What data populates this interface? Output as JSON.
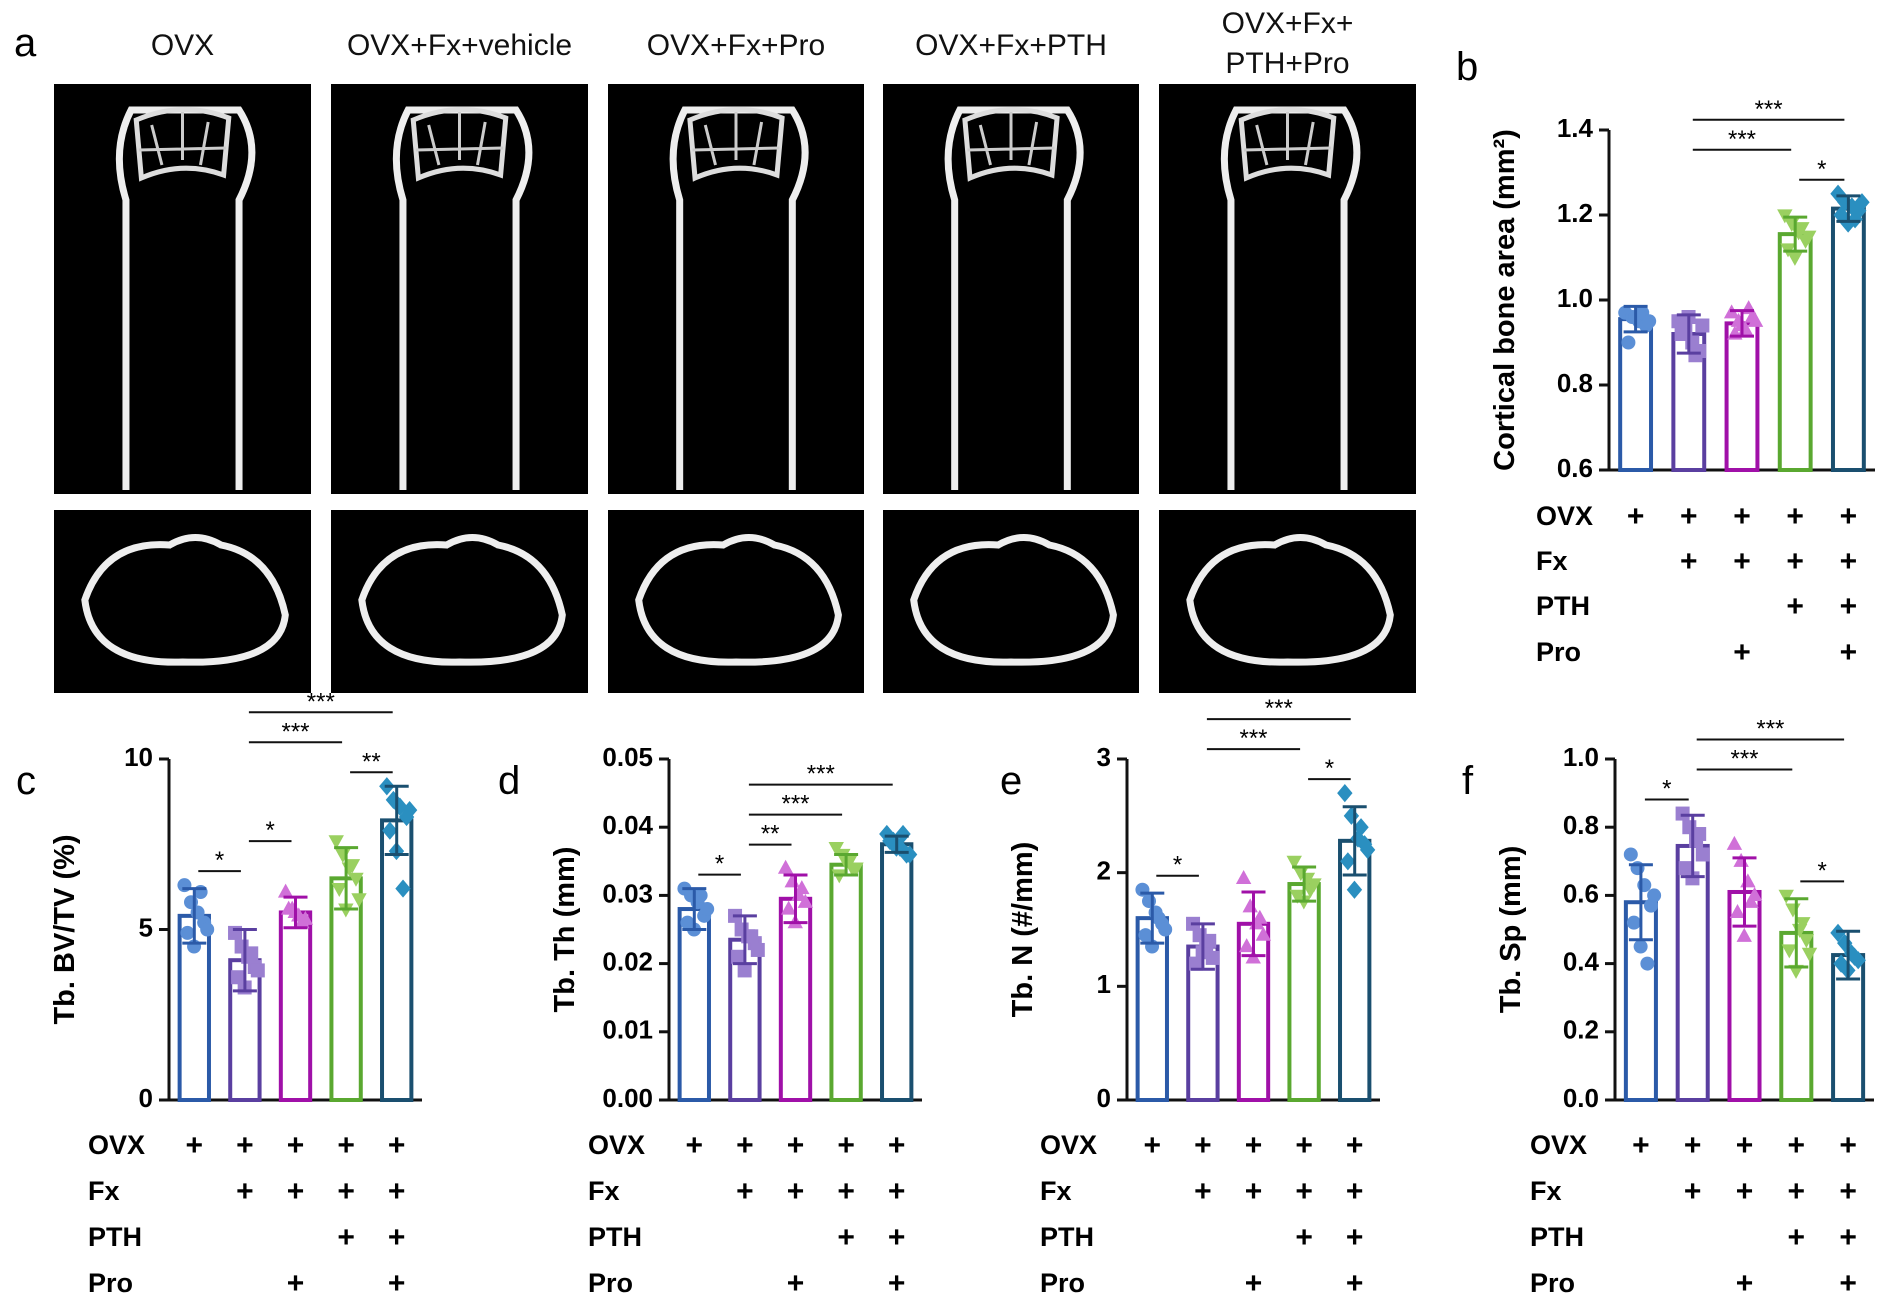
{
  "panel_a": {
    "panel": "a",
    "columns": [
      "OVX",
      "OVX+Fx+vehicle",
      "OVX+Fx+Pro",
      "OVX+Fx+PTH",
      "OVX+Fx+\nPTH+Pro"
    ]
  },
  "groups": {
    "rows": [
      "OVX",
      "Fx",
      "PTH",
      "Pro"
    ],
    "marks": [
      [
        "+",
        "+",
        "+",
        "+",
        "+"
      ],
      [
        null,
        "+",
        "+",
        "+",
        "+"
      ],
      [
        null,
        null,
        null,
        "+",
        "+"
      ],
      [
        null,
        null,
        "+",
        null,
        "+"
      ]
    ],
    "colors": [
      "#2b5aa8",
      "#5a3fa0",
      "#a010a8",
      "#5aa830",
      "#1a4f6f"
    ],
    "point_colors": [
      "#5b8fd6",
      "#9a7fd0",
      "#d070d8",
      "#9ad060",
      "#2a8fc0"
    ]
  },
  "chart_data": [
    {
      "type": "bar",
      "panel": "b",
      "ylabel": "Cortical bone area (mm²)",
      "ylim": [
        0.6,
        1.4
      ],
      "yticks": [
        0.6,
        0.8,
        {
          "value": 1.0,
          "label": "1.0"
        },
        1.2,
        1.4
      ],
      "values": [
        0.955,
        0.92,
        0.945,
        1.155,
        1.215
      ],
      "errors": [
        0.03,
        0.045,
        0.03,
        0.04,
        0.03
      ],
      "points": [
        [
          0.97,
          0.96,
          0.95,
          0.94,
          0.9,
          0.96,
          0.97,
          0.95
        ],
        [
          0.95,
          0.93,
          0.9,
          0.88,
          0.92,
          0.96,
          0.87,
          0.94
        ],
        [
          0.97,
          0.95,
          0.93,
          0.96,
          0.92,
          0.94,
          0.98,
          0.95
        ],
        [
          1.2,
          1.18,
          1.16,
          1.14,
          1.12,
          1.1,
          1.17,
          1.15
        ],
        [
          1.25,
          1.23,
          1.22,
          1.21,
          1.2,
          1.18,
          1.19,
          1.23
        ]
      ],
      "significance": [
        {
          "pair": [
            3,
            4
          ],
          "label": "*"
        },
        {
          "pair": [
            1,
            3
          ],
          "label": "***"
        },
        {
          "pair": [
            1,
            4
          ],
          "label": "***"
        }
      ]
    },
    {
      "type": "bar",
      "panel": "c",
      "ylabel": "Tb. BV/TV (%)",
      "ylim": [
        0,
        10
      ],
      "yticks": [
        0,
        5,
        10
      ],
      "values": [
        5.4,
        4.1,
        5.5,
        6.5,
        8.2
      ],
      "errors": [
        0.8,
        0.9,
        0.45,
        0.9,
        1.0
      ],
      "points": [
        [
          6.3,
          5.8,
          5.5,
          5.2,
          4.9,
          4.5,
          6.1,
          5.0
        ],
        [
          4.9,
          4.5,
          4.2,
          3.9,
          3.6,
          3.3,
          4.3,
          3.8
        ],
        [
          6.1,
          5.6,
          5.4,
          5.3,
          5.6,
          5.5,
          5.2
        ],
        [
          7.6,
          7.2,
          6.8,
          6.5,
          6.2,
          5.6,
          6.9,
          5.9
        ],
        [
          9.2,
          8.8,
          8.6,
          8.3,
          7.9,
          7.3,
          6.2,
          8.5
        ]
      ],
      "significance": [
        {
          "pair": [
            0,
            1
          ],
          "label": "*"
        },
        {
          "pair": [
            1,
            2
          ],
          "label": "*"
        },
        {
          "pair": [
            3,
            4
          ],
          "label": "**"
        },
        {
          "pair": [
            1,
            3
          ],
          "label": "***"
        },
        {
          "pair": [
            1,
            4
          ],
          "label": "***"
        }
      ]
    },
    {
      "type": "bar",
      "panel": "d",
      "ylabel": "Tb. Th (mm)",
      "ylim": [
        0,
        0.05
      ],
      "yticks": [
        {
          "value": 0,
          "label": "0.00"
        },
        0.01,
        0.02,
        0.03,
        0.04,
        0.05
      ],
      "values": [
        0.028,
        0.0235,
        0.0295,
        0.0345,
        0.0375
      ],
      "errors": [
        0.003,
        0.0035,
        0.0035,
        0.0015,
        0.0012
      ],
      "points": [
        [
          0.031,
          0.03,
          0.029,
          0.027,
          0.026,
          0.025,
          0.03,
          0.028
        ],
        [
          0.027,
          0.025,
          0.024,
          0.023,
          0.021,
          0.019,
          0.024,
          0.022
        ],
        [
          0.034,
          0.032,
          0.03,
          0.029,
          0.028,
          0.026,
          0.031
        ],
        [
          0.037,
          0.036,
          0.035,
          0.034,
          0.033,
          0.035,
          0.034
        ],
        [
          0.039,
          0.038,
          0.037,
          0.036,
          0.038,
          0.037,
          0.039,
          0.036
        ]
      ],
      "significance": [
        {
          "pair": [
            0,
            1
          ],
          "label": "*"
        },
        {
          "pair": [
            1,
            2
          ],
          "label": "**"
        },
        {
          "pair": [
            1,
            3
          ],
          "label": "***"
        },
        {
          "pair": [
            1,
            4
          ],
          "label": "***"
        }
      ]
    },
    {
      "type": "bar",
      "panel": "e",
      "ylabel": "Tb. N (#/mm)",
      "ylim": [
        0,
        3
      ],
      "yticks": [
        0,
        1,
        2,
        3
      ],
      "values": [
        1.6,
        1.35,
        1.55,
        1.9,
        2.28
      ],
      "errors": [
        0.22,
        0.2,
        0.28,
        0.15,
        0.3
      ],
      "points": [
        [
          1.85,
          1.75,
          1.65,
          1.55,
          1.45,
          1.35,
          1.6,
          1.5
        ],
        [
          1.55,
          1.45,
          1.35,
          1.25,
          1.2,
          1.3,
          1.4
        ],
        [
          1.95,
          1.7,
          1.55,
          1.45,
          1.35,
          1.25,
          1.6
        ],
        [
          2.1,
          2.0,
          1.95,
          1.9,
          1.8,
          1.75,
          1.85
        ],
        [
          2.7,
          2.5,
          2.3,
          2.25,
          2.1,
          1.85,
          2.4,
          2.2
        ]
      ],
      "significance": [
        {
          "pair": [
            0,
            1
          ],
          "label": "*"
        },
        {
          "pair": [
            3,
            4
          ],
          "label": "*"
        },
        {
          "pair": [
            1,
            3
          ],
          "label": "***"
        },
        {
          "pair": [
            1,
            4
          ],
          "label": "***"
        }
      ]
    },
    {
      "type": "bar",
      "panel": "f",
      "ylabel": "Tb. Sp (mm)",
      "ylim": [
        0,
        1
      ],
      "yticks": [
        {
          "value": 0,
          "label": "0.0"
        },
        0.2,
        0.4,
        0.6,
        0.8,
        {
          "value": 1,
          "label": "1.0"
        }
      ],
      "values": [
        0.58,
        0.745,
        0.61,
        0.49,
        0.425
      ],
      "errors": [
        0.11,
        0.09,
        0.1,
        0.1,
        0.07
      ],
      "points": [
        [
          0.72,
          0.68,
          0.63,
          0.57,
          0.52,
          0.45,
          0.4,
          0.6
        ],
        [
          0.84,
          0.8,
          0.76,
          0.72,
          0.68,
          0.65,
          0.78
        ],
        [
          0.75,
          0.7,
          0.64,
          0.6,
          0.55,
          0.48,
          0.58
        ],
        [
          0.6,
          0.56,
          0.5,
          0.47,
          0.44,
          0.38,
          0.52,
          0.43
        ],
        [
          0.49,
          0.46,
          0.43,
          0.41,
          0.4,
          0.38,
          0.42
        ]
      ],
      "significance": [
        {
          "pair": [
            0,
            1
          ],
          "label": "*"
        },
        {
          "pair": [
            3,
            4
          ],
          "label": "*"
        },
        {
          "pair": [
            1,
            3
          ],
          "label": "***"
        },
        {
          "pair": [
            1,
            4
          ],
          "label": "***"
        }
      ]
    }
  ]
}
